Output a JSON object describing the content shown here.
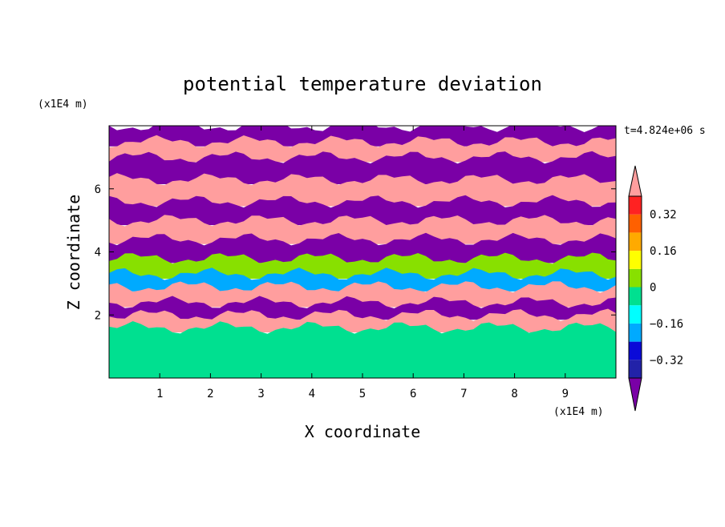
{
  "chart_data": {
    "type": "heatmap",
    "title": "potential temperature deviation",
    "xlabel": "X coordinate",
    "ylabel": "Z coordinate",
    "x_unit": "(x1E4 m)",
    "y_unit": "(x1E4 m)",
    "time_label": "t=4.824e+06 s",
    "xlim": [
      0,
      10
    ],
    "ylim": [
      0,
      8
    ],
    "x_ticks": [
      1,
      2,
      3,
      4,
      5,
      6,
      7,
      8,
      9
    ],
    "y_ticks": [
      2,
      4,
      6
    ],
    "colorbar": {
      "levels": [
        -0.4,
        -0.32,
        -0.24,
        -0.16,
        -0.08,
        0,
        0.08,
        0.16,
        0.24,
        0.32,
        0.4
      ],
      "labels": [
        "0.32",
        "0.16",
        "0",
        "−0.16",
        "−0.32"
      ],
      "label_values": [
        0.32,
        0.16,
        0,
        -0.16,
        -0.32
      ],
      "colors": [
        "#7a00a6",
        "#2222a8",
        "#0a0ad8",
        "#00aaff",
        "#00ffff",
        "#00e090",
        "#88e000",
        "#ffff00",
        "#ffaa00",
        "#ff6000",
        "#ff2222",
        "#ff9e9e"
      ],
      "extend": "both"
    },
    "bands": [
      {
        "z_top": 8.0,
        "z_bot": 7.5,
        "value": -0.5
      },
      {
        "z_top": 7.5,
        "z_bot": 7.0,
        "value": 0.5
      },
      {
        "z_top": 7.0,
        "z_bot": 6.3,
        "value": -0.5
      },
      {
        "z_top": 6.3,
        "z_bot": 5.6,
        "value": 0.5
      },
      {
        "z_top": 5.6,
        "z_bot": 5.0,
        "value": -0.5
      },
      {
        "z_top": 5.0,
        "z_bot": 4.4,
        "value": 0.5
      },
      {
        "z_top": 4.4,
        "z_bot": 3.8,
        "value": -0.5
      },
      {
        "z_top": 3.8,
        "z_bot": 3.3,
        "value": 0.0
      },
      {
        "z_top": 3.3,
        "z_bot": 2.9,
        "value": -0.2
      },
      {
        "z_top": 2.9,
        "z_bot": 2.4,
        "value": 0.5
      },
      {
        "z_top": 2.4,
        "z_bot": 2.0,
        "value": -0.5
      },
      {
        "z_top": 2.0,
        "z_bot": 1.6,
        "value": 0.4
      },
      {
        "z_top": 1.6,
        "z_bot": 0.0,
        "value": -0.05
      }
    ]
  }
}
